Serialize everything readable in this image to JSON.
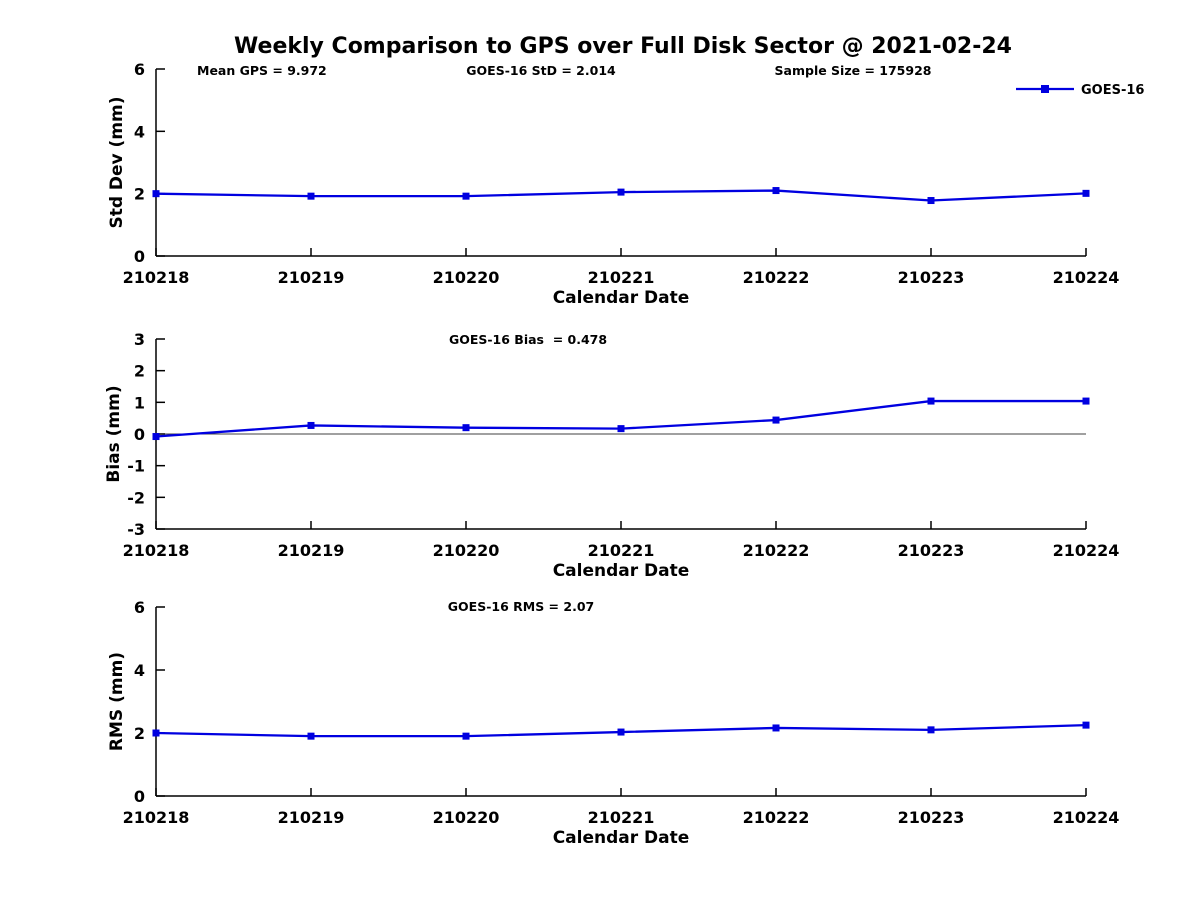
{
  "title": "Weekly Comparison to GPS over Full Disk Sector @ 2021-02-24",
  "legend": {
    "label": "GOES-16",
    "position": "top-right"
  },
  "colors": {
    "line": "#0000E0",
    "axis": "#000000",
    "background": "#FFFFFF",
    "text": "#000000"
  },
  "chart_data": [
    {
      "type": "line",
      "title": "",
      "x": [
        "210218",
        "210219",
        "210220",
        "210221",
        "210222",
        "210223",
        "210224"
      ],
      "series": [
        {
          "name": "GOES-16",
          "values": [
            2.0,
            1.92,
            1.92,
            2.05,
            2.1,
            1.78,
            2.01
          ]
        }
      ],
      "xlabel": "Calendar Date",
      "ylabel": "Std Dev (mm)",
      "ylim": [
        0,
        6
      ],
      "yticks": [
        0,
        2,
        4,
        6
      ],
      "grid": false,
      "zero_line": false,
      "annotations": [
        "Mean GPS = 9.972",
        "GOES-16 StD = 2.014",
        "Sample Size = 175928"
      ],
      "legend": "GOES-16"
    },
    {
      "type": "line",
      "title": "",
      "x": [
        "210218",
        "210219",
        "210220",
        "210221",
        "210222",
        "210223",
        "210224"
      ],
      "series": [
        {
          "name": "GOES-16",
          "values": [
            -0.08,
            0.27,
            0.2,
            0.17,
            0.44,
            1.04,
            1.04
          ]
        }
      ],
      "xlabel": "Calendar Date",
      "ylabel": "Bias (mm)",
      "ylim": [
        -3,
        3
      ],
      "yticks": [
        -3,
        -2,
        -1,
        0,
        1,
        2,
        3
      ],
      "grid": false,
      "zero_line": true,
      "annotations": [
        "GOES-16 Bias  = 0.478"
      ]
    },
    {
      "type": "line",
      "title": "",
      "x": [
        "210218",
        "210219",
        "210220",
        "210221",
        "210222",
        "210223",
        "210224"
      ],
      "series": [
        {
          "name": "GOES-16",
          "values": [
            2.0,
            1.9,
            1.9,
            2.03,
            2.16,
            2.1,
            2.25
          ]
        }
      ],
      "xlabel": "Calendar Date",
      "ylabel": "RMS (mm)",
      "ylim": [
        0,
        6
      ],
      "yticks": [
        0,
        2,
        4,
        6
      ],
      "grid": false,
      "zero_line": false,
      "annotations": [
        "GOES-16 RMS = 2.07"
      ]
    }
  ]
}
